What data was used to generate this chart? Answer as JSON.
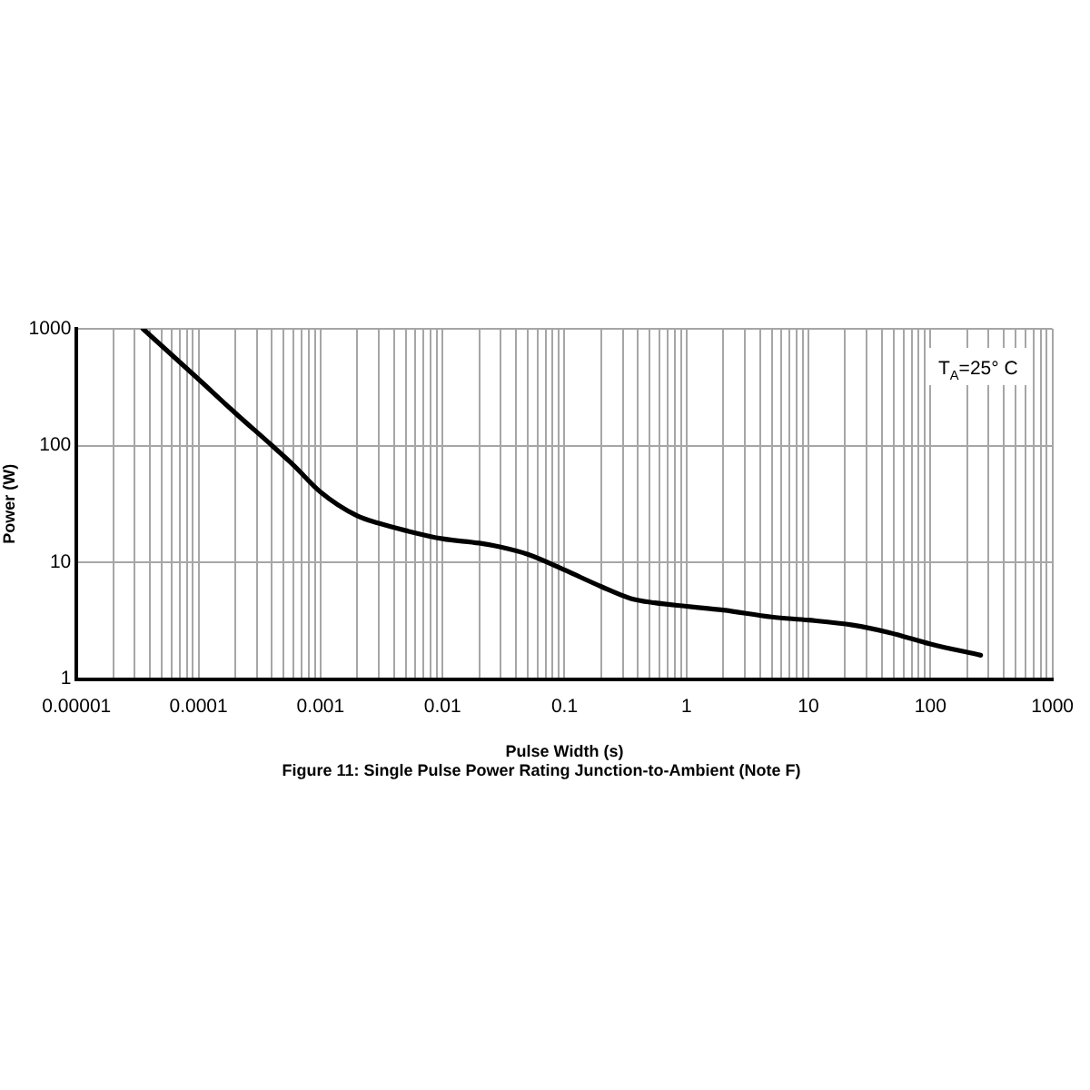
{
  "chart_data": {
    "type": "line",
    "title": "Figure 11: Single Pulse Power Rating Junction-to-Ambient (Note F)",
    "xlabel": "Pulse Width (s)",
    "ylabel": "Power (W)",
    "annotations": [
      "T$_{A}$=25° C"
    ],
    "x": [
      3.5e-05,
      0.0001,
      0.0002,
      0.0004,
      0.0006,
      0.001,
      0.002,
      0.003,
      0.005,
      0.01,
      0.02,
      0.03,
      0.05,
      0.1,
      0.2,
      0.35,
      0.55,
      1,
      2,
      5,
      10,
      23,
      46,
      100,
      258
    ],
    "values": [
      1000,
      370,
      190,
      100,
      68,
      40,
      25,
      21.6,
      18.7,
      15.9,
      14.6,
      13.5,
      11.7,
      8.6,
      6.2,
      4.9,
      4.5,
      4.2,
      3.9,
      3.4,
      3.2,
      2.9,
      2.5,
      2.0,
      1.6
    ],
    "color": "#000000",
    "marker": "none",
    "log": "xy",
    "grid": true,
    "legend": false,
    "xlim": [
      1e-05,
      1000
    ],
    "ylim": [
      1,
      1000
    ],
    "xticks": [
      {
        "value": 1e-05,
        "label": "0.00001"
      },
      {
        "value": 2e-05,
        "label": null
      },
      {
        "value": 3e-05,
        "label": null
      },
      {
        "value": 4e-05,
        "label": null
      },
      {
        "value": 5e-05,
        "label": null
      },
      {
        "value": 6e-05,
        "label": null
      },
      {
        "value": 7e-05,
        "label": null
      },
      {
        "value": 8e-05,
        "label": null
      },
      {
        "value": 9e-05,
        "label": null
      },
      {
        "value": 0.0001,
        "label": "0.0001"
      },
      {
        "value": 0.0002,
        "label": null
      },
      {
        "value": 0.0003,
        "label": null
      },
      {
        "value": 0.0004,
        "label": null
      },
      {
        "value": 0.0005,
        "label": null
      },
      {
        "value": 0.0006,
        "label": null
      },
      {
        "value": 0.0007,
        "label": null
      },
      {
        "value": 0.0008,
        "label": null
      },
      {
        "value": 0.0009,
        "label": null
      },
      0.001,
      {
        "value": 0.002,
        "label": null
      },
      {
        "value": 0.003,
        "label": null
      },
      {
        "value": 0.004,
        "label": null
      },
      {
        "value": 0.005,
        "label": null
      },
      {
        "value": 0.006,
        "label": null
      },
      {
        "value": 0.007,
        "label": null
      },
      {
        "value": 0.008,
        "label": null
      },
      {
        "value": 0.009,
        "label": null
      },
      0.01,
      {
        "value": 0.02,
        "label": null
      },
      {
        "value": 0.03,
        "label": null
      },
      {
        "value": 0.04,
        "label": null
      },
      {
        "value": 0.05,
        "label": null
      },
      {
        "value": 0.06,
        "label": null
      },
      {
        "value": 0.07,
        "label": null
      },
      {
        "value": 0.08,
        "label": null
      },
      {
        "value": 0.09,
        "label": null
      },
      0.1,
      {
        "value": 0.2,
        "label": null
      },
      {
        "value": 0.3,
        "label": null
      },
      {
        "value": 0.4,
        "label": null
      },
      {
        "value": 0.5,
        "label": null
      },
      {
        "value": 0.6,
        "label": null
      },
      {
        "value": 0.7,
        "label": null
      },
      {
        "value": 0.8,
        "label": null
      },
      {
        "value": 0.9,
        "label": null
      },
      1,
      {
        "value": 2,
        "label": null
      },
      {
        "value": 3,
        "label": null
      },
      {
        "value": 4,
        "label": null
      },
      {
        "value": 5,
        "label": null
      },
      {
        "value": 6,
        "label": null
      },
      {
        "value": 7,
        "label": null
      },
      {
        "value": 8,
        "label": null
      },
      {
        "value": 9,
        "label": null
      },
      10,
      {
        "value": 20,
        "label": null
      },
      {
        "value": 30,
        "label": null
      },
      {
        "value": 40,
        "label": null
      },
      {
        "value": 50,
        "label": null
      },
      {
        "value": 60,
        "label": null
      },
      {
        "value": 70,
        "label": null
      },
      {
        "value": 80,
        "label": null
      },
      {
        "value": 90,
        "label": null
      },
      100,
      {
        "value": 200,
        "label": null
      },
      {
        "value": 300,
        "label": null
      },
      {
        "value": 400,
        "label": null
      },
      {
        "value": 500,
        "label": null
      },
      {
        "value": 600,
        "label": null
      },
      {
        "value": 700,
        "label": null
      },
      {
        "value": 800,
        "label": null
      },
      {
        "value": 900,
        "label": null
      },
      1000
    ],
    "yticks": [
      1,
      10,
      100,
      1000
    ]
  }
}
